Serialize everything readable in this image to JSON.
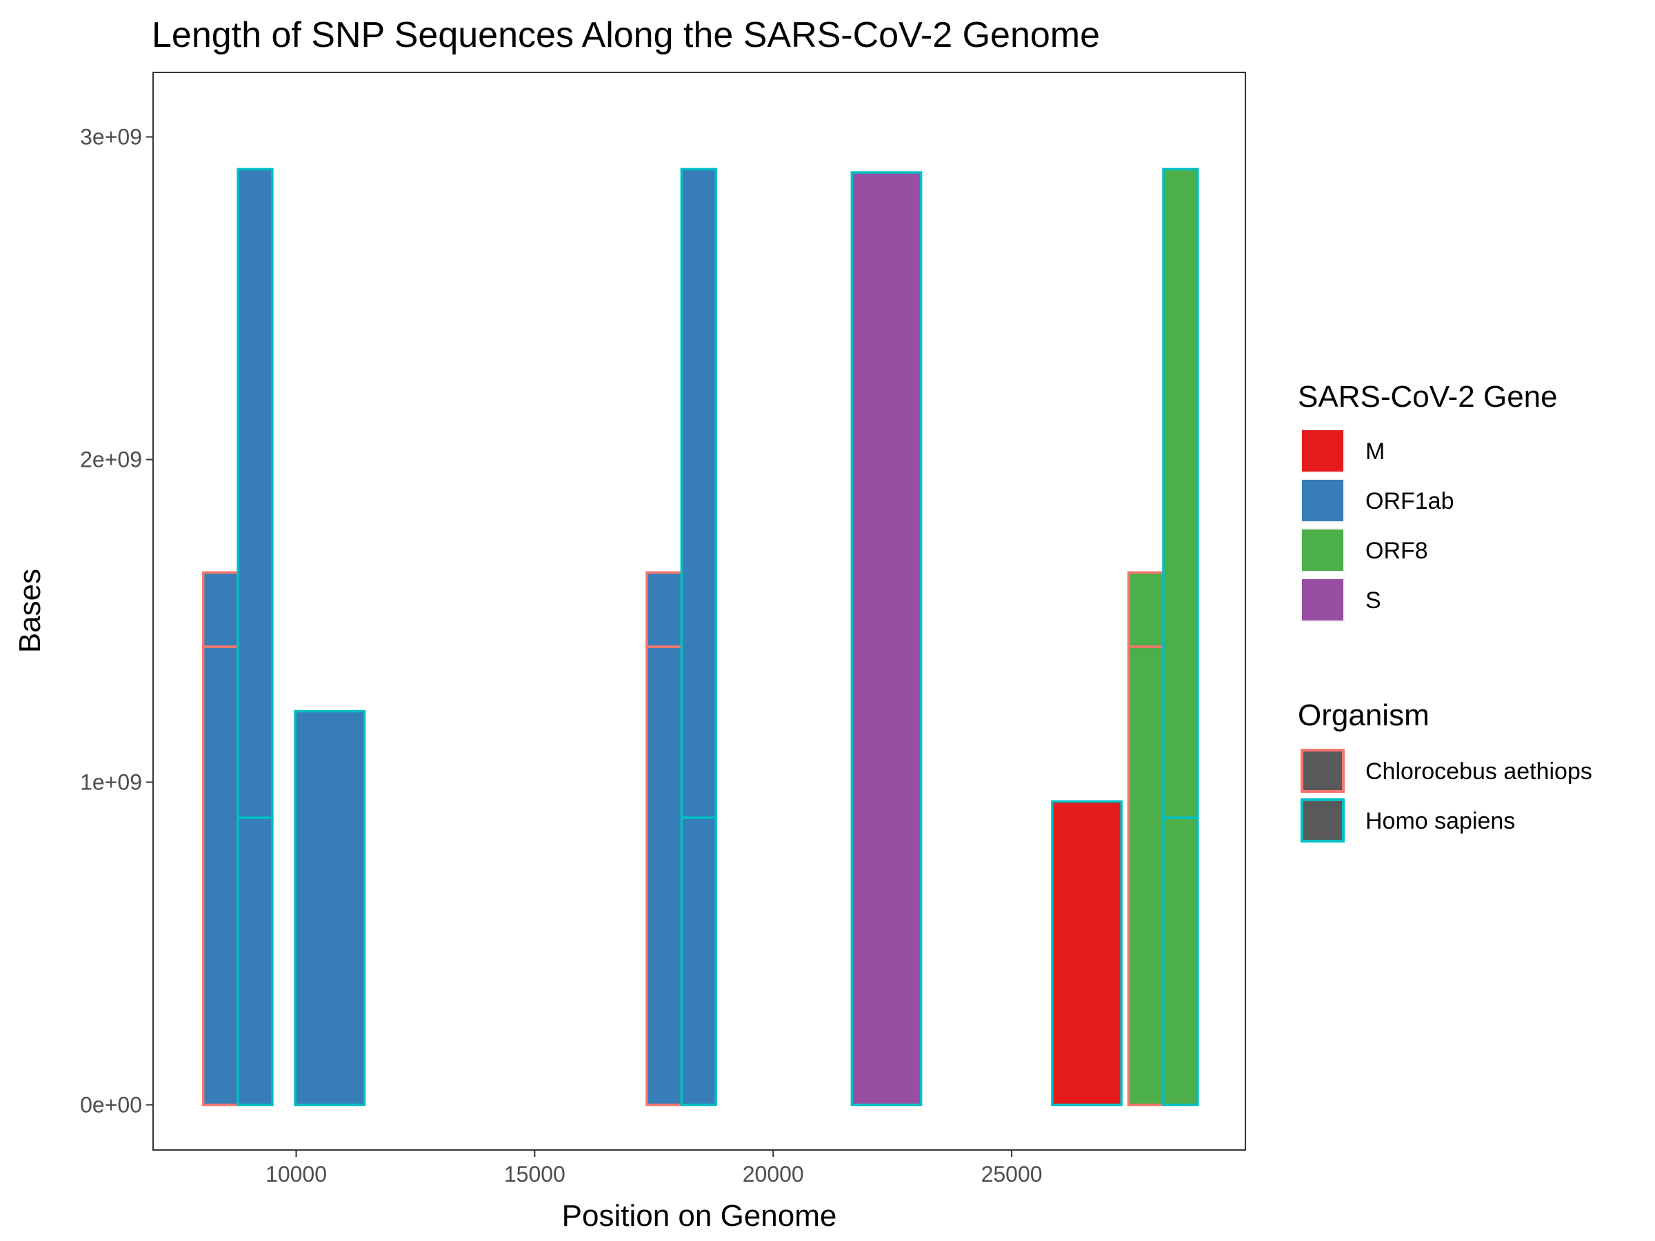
{
  "chart_data": {
    "type": "bar",
    "title": "Length of SNP Sequences Along the SARS-CoV-2 Genome",
    "xlabel": "Position on Genome",
    "ylabel": "Bases",
    "xlim": [
      7000,
      29900
    ],
    "ylim": [
      -140000000,
      3200000000
    ],
    "x_ticks": [
      10000,
      15000,
      20000,
      25000
    ],
    "x_tick_labels": [
      "10000",
      "15000",
      "20000",
      "25000"
    ],
    "y_ticks": [
      0,
      1000000000,
      2000000000,
      3000000000
    ],
    "y_tick_labels": [
      "0e+00",
      "1e+09",
      "2e+09",
      "3e+09"
    ],
    "grid": false,
    "legend_position": "right",
    "fill_legend": {
      "title": "SARS-CoV-2 Gene",
      "entries": [
        {
          "label": "M",
          "color": "#E41A1C"
        },
        {
          "label": "ORF1ab",
          "color": "#377EB8"
        },
        {
          "label": "ORF8",
          "color": "#4DAF4A"
        },
        {
          "label": "S",
          "color": "#984EA3"
        }
      ]
    },
    "color_legend": {
      "title": "Organism",
      "entries": [
        {
          "label": "Chlorocebus aethiops",
          "color": "#F8766D"
        },
        {
          "label": "Homo sapiens",
          "color": "#00BFC4"
        }
      ]
    },
    "bars": [
      {
        "xmin": 8050,
        "xmax": 8780,
        "stack": [
          1420000000,
          230000000
        ],
        "gene": "ORF1ab",
        "organism": "Chlorocebus aethiops"
      },
      {
        "xmin": 8780,
        "xmax": 9500,
        "stack": [
          890000000,
          2010000000
        ],
        "gene": "ORF1ab",
        "organism": "Homo sapiens"
      },
      {
        "xmin": 9980,
        "xmax": 11430,
        "stack": [
          1220000000
        ],
        "gene": "ORF1ab",
        "organism": "Homo sapiens"
      },
      {
        "xmin": 17350,
        "xmax": 18080,
        "stack": [
          1420000000,
          230000000
        ],
        "gene": "ORF1ab",
        "organism": "Chlorocebus aethiops"
      },
      {
        "xmin": 18080,
        "xmax": 18800,
        "stack": [
          890000000,
          2010000000
        ],
        "gene": "ORF1ab",
        "organism": "Homo sapiens"
      },
      {
        "xmin": 21650,
        "xmax": 23100,
        "stack": [
          2890000000
        ],
        "gene": "S",
        "organism": "Homo sapiens"
      },
      {
        "xmin": 25850,
        "xmax": 27300,
        "stack": [
          940000000
        ],
        "gene": "M",
        "organism": "Homo sapiens"
      },
      {
        "xmin": 27450,
        "xmax": 28180,
        "stack": [
          1420000000,
          230000000
        ],
        "gene": "ORF8",
        "organism": "Chlorocebus aethiops"
      },
      {
        "xmin": 28180,
        "xmax": 28900,
        "stack": [
          890000000,
          2010000000
        ],
        "gene": "ORF8",
        "organism": "Homo sapiens"
      }
    ]
  }
}
